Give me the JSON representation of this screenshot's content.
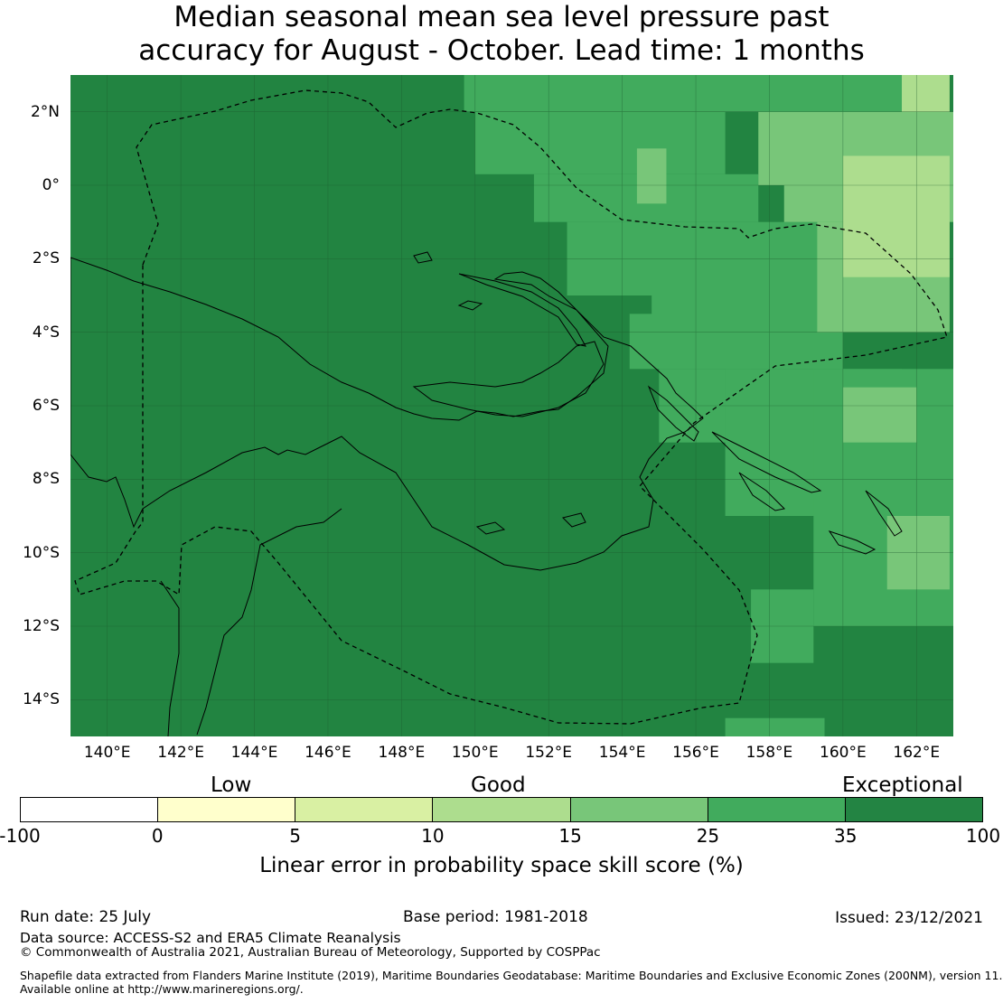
{
  "title_line1": "Median seasonal mean sea level pressure past",
  "title_line2": "accuracy for August - October. Lead time: 1 months",
  "lat_labels": [
    "2°N",
    "0°",
    "2°S",
    "4°S",
    "6°S",
    "8°S",
    "10°S",
    "12°S",
    "14°S"
  ],
  "lon_labels": [
    "140°E",
    "142°E",
    "144°E",
    "146°E",
    "148°E",
    "150°E",
    "152°E",
    "154°E",
    "156°E",
    "158°E",
    "160°E",
    "162°E"
  ],
  "categories": {
    "low": "Low",
    "good": "Good",
    "exceptional": "Exceptional"
  },
  "colorbar": {
    "ticks": [
      "-100",
      "0",
      "5",
      "10",
      "15",
      "25",
      "35",
      "100"
    ],
    "colors": [
      "#ffffff",
      "#ffffcc",
      "#d9f0a3",
      "#addd8e",
      "#78c679",
      "#41ab5d",
      "#238443"
    ],
    "label": "Linear error in probability space skill score (%)"
  },
  "footer": {
    "run_date": "Run date: 25 July",
    "base_period": "Base period: 1981-2018",
    "issued": "Issued: 23/12/2021",
    "data_source": "Data source: ACCESS-S2 and ERA5 Climate Reanalysis",
    "copyright": "© Commonwealth of Australia 2021, Australian Bureau of Meteorology, Supported by COSPPac",
    "shapefile_line1": "Shapefile data extracted from Flanders Marine Institute (2019), Maritime Boundaries Geodatabase: Maritime Boundaries and Exclusive Economic Zones (200NM), version 11.",
    "shapefile_line2": "Available online at http://www.marineregions.org/."
  },
  "map_grid": {
    "lon_range": [
      139,
      163
    ],
    "lat_range": [
      -15,
      3
    ],
    "cell_deg": 0.8333,
    "cells": [
      {
        "lon": [
          149.7,
          162.8
        ],
        "lat": [
          2.0,
          3.0
        ],
        "level": "25-35"
      },
      {
        "lon": [
          150.0,
          156.8
        ],
        "lat": [
          0.3,
          2.0
        ],
        "level": "25-35"
      },
      {
        "lon": [
          151.6,
          157.7
        ],
        "lat": [
          -1.0,
          0.3
        ],
        "level": "25-35"
      },
      {
        "lon": [
          152.5,
          160.8
        ],
        "lat": [
          -3.0,
          -1.0
        ],
        "level": "25-35"
      },
      {
        "lon": [
          154.2,
          160.0
        ],
        "lat": [
          -5.0,
          -3.0
        ],
        "level": "25-35"
      },
      {
        "lon": [
          155.0,
          157.5
        ],
        "lat": [
          -7.0,
          -5.0
        ],
        "level": "25-35"
      },
      {
        "lon": [
          156.8,
          161.6
        ],
        "lat": [
          -9.0,
          -5.0
        ],
        "level": "25-35"
      },
      {
        "lon": [
          159.2,
          163.0
        ],
        "lat": [
          -12.0,
          -5.0
        ],
        "level": "25-35"
      },
      {
        "lon": [
          157.5,
          159.2
        ],
        "lat": [
          -13.0,
          -11.0
        ],
        "level": "25-35"
      },
      {
        "lon": [
          156.8,
          159.5
        ],
        "lat": [
          -15.0,
          -14.5
        ],
        "level": "25-35"
      },
      {
        "lon": [
          157.7,
          163.0
        ],
        "lat": [
          0.0,
          2.0
        ],
        "level": "15-25"
      },
      {
        "lon": [
          158.4,
          163.0
        ],
        "lat": [
          -1.0,
          0.0
        ],
        "level": "15-25"
      },
      {
        "lon": [
          159.3,
          162.9
        ],
        "lat": [
          -4.0,
          -1.0
        ],
        "level": "15-25"
      },
      {
        "lon": [
          160.0,
          162.0
        ],
        "lat": [
          -7.0,
          -5.5
        ],
        "level": "15-25"
      },
      {
        "lon": [
          161.2,
          162.9
        ],
        "lat": [
          -11.0,
          -9.0
        ],
        "level": "15-25"
      },
      {
        "lon": [
          154.4,
          155.2
        ],
        "lat": [
          -0.5,
          1.0
        ],
        "level": "15-25"
      },
      {
        "lon": [
          160.0,
          162.9
        ],
        "lat": [
          -2.5,
          0.8
        ],
        "level": "10-15"
      },
      {
        "lon": [
          161.6,
          162.9
        ],
        "lat": [
          2.0,
          3.0
        ],
        "level": "10-15"
      },
      {
        "lon": [
          152.4,
          154.8
        ],
        "lat": [
          -3.5,
          -3.0
        ],
        "level": "35-100"
      }
    ]
  }
}
